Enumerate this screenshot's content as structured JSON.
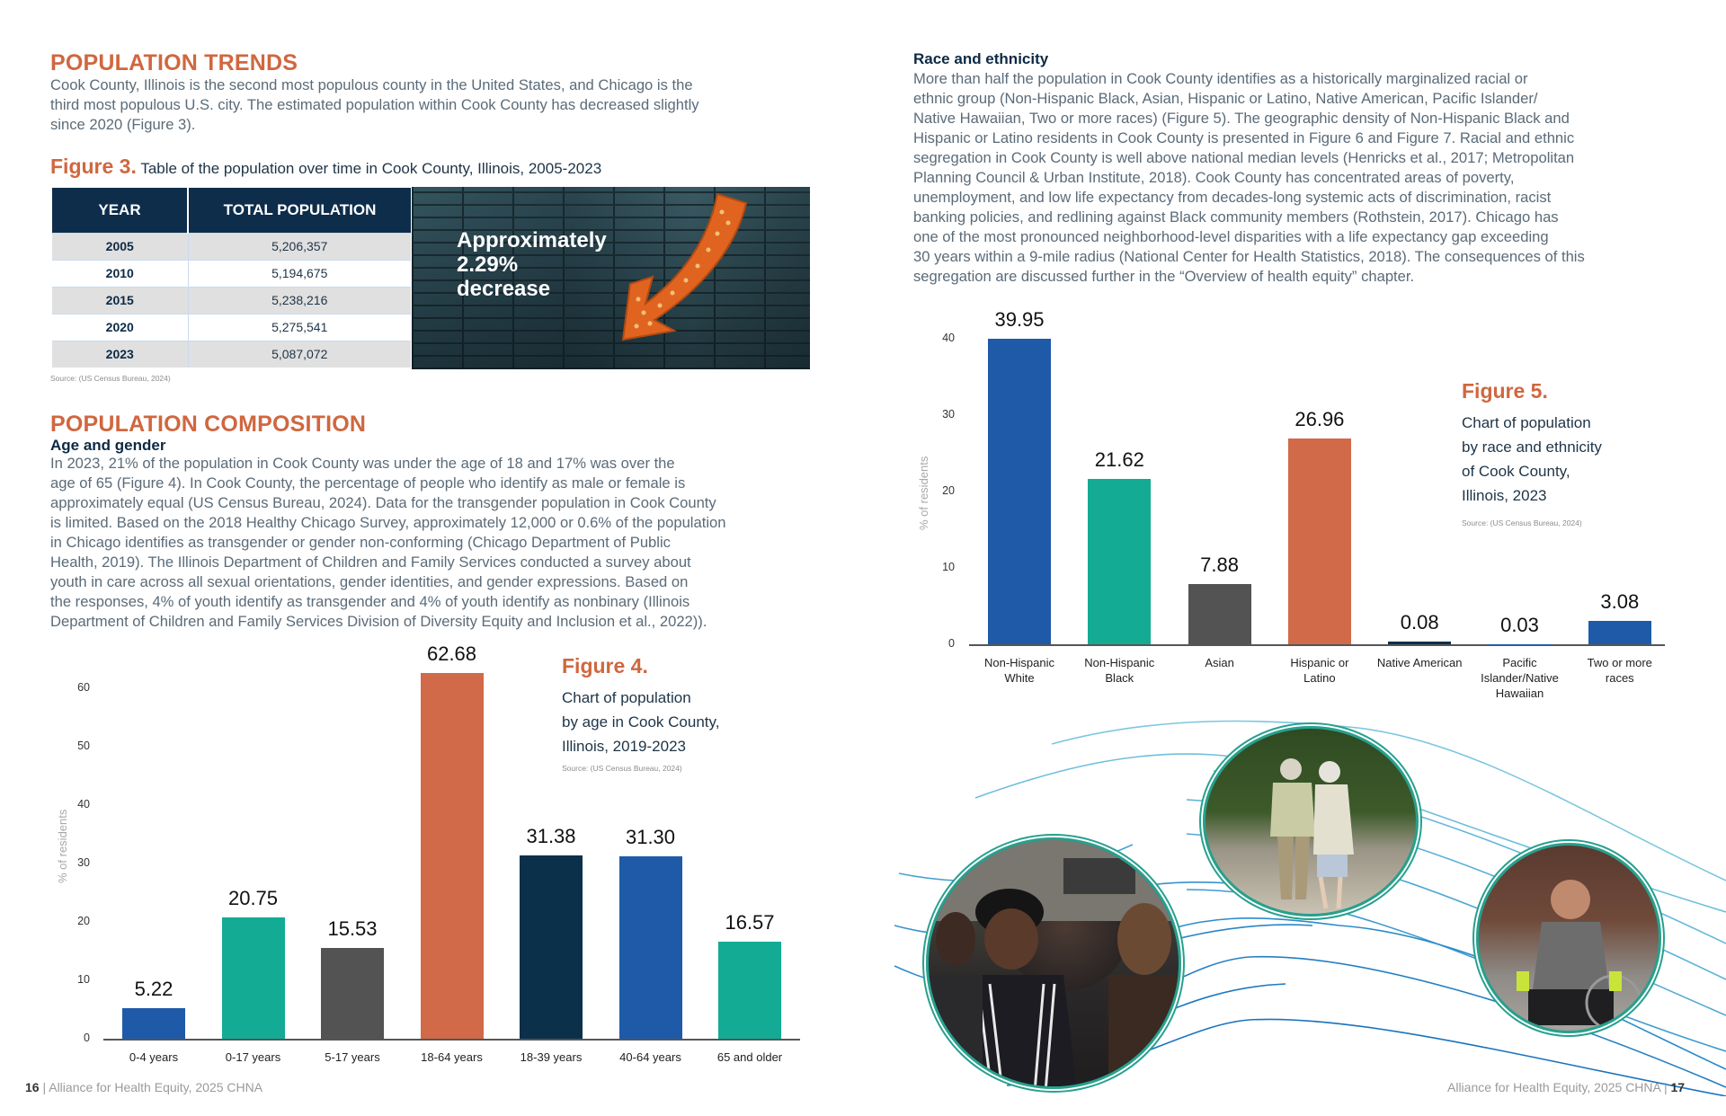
{
  "left_page": {
    "section_title": "POPULATION TRENDS",
    "intro_lines": [
      "Cook County, Illinois is the second most populous county in the United States, and Chicago is the",
      "third most populous U.S. city. The estimated population within Cook County has decreased slightly",
      "since 2020 (Figure 3)."
    ],
    "figure3": {
      "label": "Figure 3.",
      "caption": "Table of the population over time in Cook County, Illinois, 2005-2023",
      "columns": [
        "YEAR",
        "TOTAL POPULATION"
      ],
      "rows": [
        {
          "year": "2005",
          "population": "5,206,357"
        },
        {
          "year": "2010",
          "population": "5,194,675"
        },
        {
          "year": "2015",
          "population": "5,238,216"
        },
        {
          "year": "2020",
          "population": "5,275,541"
        },
        {
          "year": "2023",
          "population": "5,087,072"
        }
      ],
      "callout_lines": [
        "Approximately",
        "2.29%",
        "decrease"
      ],
      "source": "Source: (US Census Bureau, 2024)"
    },
    "composition_title": "POPULATION COMPOSITION",
    "age_gender_title": "Age and gender",
    "age_gender_lines": [
      "In 2023, 21% of the population in Cook County was under the age of 18 and 17% was over the",
      "age of 65 (Figure 4). In Cook County, the percentage of people who identify as male or female is",
      "approximately equal (US Census Bureau, 2024). Data for the transgender population in Cook County",
      "is limited. Based on the 2018 Healthy Chicago Survey, approximately 12,000 or 0.6% of the population",
      "in Chicago identifies as transgender or gender non-conforming (Chicago Department of Public",
      "Health, 2019). The Illinois Department of Children and Family Services conducted a survey about",
      "youth in care across all sexual orientations, gender identities, and gender expressions. Based on",
      "the responses, 4% of youth identify as transgender and 4% of youth identify as nonbinary (Illinois",
      "Department of Children and Family Services Division of Diversity Equity and Inclusion et al., 2022))."
    ],
    "figure4": {
      "label": "Figure 4.",
      "caption_lines": [
        "Chart of population",
        "by age in Cook County,",
        "Illinois, 2019-2023"
      ],
      "source": "Source: (US Census Bureau, 2024)"
    },
    "footer": {
      "page": "16",
      "sep": " | ",
      "text": "Alliance for Health Equity, 2025 CHNA"
    }
  },
  "right_page": {
    "race_title": "Race and ethnicity",
    "race_lines": [
      "More than half the population in Cook County identifies as a historically marginalized racial or",
      "ethnic group (Non-Hispanic Black, Asian, Hispanic or Latino, Native American, Pacific Islander/",
      "Native Hawaiian, Two or more races) (Figure 5). The geographic density of Non-Hispanic Black and",
      "Hispanic or Latino residents in Cook County is presented in Figure 6 and Figure 7. Racial and ethnic",
      "segregation in Cook County is well above national median levels (Henricks et al., 2017; Metropolitan",
      "Planning Council & Urban Institute, 2018). Cook County has concentrated areas of poverty,",
      "unemployment, and low life expectancy from decades-long systemic acts of discrimination, racist",
      "banking policies, and redlining against Black community members (Rothstein, 2017). Chicago has",
      "one of the most pronounced neighborhood-level disparities with a life expectancy gap exceeding",
      "30 years within a 9-mile radius (National Center for Health Statistics, 2018). The consequences of this",
      "segregation are discussed further in the “Overview of health equity” chapter."
    ],
    "figure5": {
      "label": "Figure 5.",
      "caption_lines": [
        "Chart of population",
        "by race and ethnicity",
        "of Cook County,",
        "Illinois, 2023"
      ],
      "source": "Source: (US Census Bureau, 2024)"
    },
    "photos": [
      "young-men-laughing-photo",
      "elderly-couple-walking-photo",
      "man-in-wheelchair-photo"
    ],
    "footer": {
      "text": "Alliance for Health Equity, 2025 CHNA",
      "sep": " | ",
      "page": "17"
    }
  },
  "colors": {
    "accent_orange": "#d0673f",
    "navy": "#0d2d4a",
    "blue": "#1f5aa8",
    "teal": "#13ab94",
    "gray": "#535353",
    "dark_navy": "#0b304a",
    "frame_teal": "#27a08d"
  },
  "chart_data": [
    {
      "type": "bar",
      "title": "Figure 4. Chart of population by age in Cook County, Illinois, 2019-2023",
      "xlabel": "",
      "ylabel": "% of residents",
      "ylim": [
        0,
        65
      ],
      "yticks": [
        0,
        10,
        20,
        30,
        40,
        50,
        60
      ],
      "grid": false,
      "categories": [
        "0-4 years",
        "0-17 years",
        "5-17 years",
        "18-64 years",
        "18-39 years",
        "40-64 years",
        "65 and older"
      ],
      "values": [
        5.22,
        20.75,
        15.53,
        62.68,
        31.38,
        31.3,
        16.57
      ],
      "labels": [
        "5.22",
        "20.75",
        "15.53",
        "62.68",
        "31.38",
        "31.30",
        "16.57"
      ],
      "bar_colors": [
        "#1f5aa8",
        "#13ab94",
        "#535353",
        "#d06a48",
        "#0b304a",
        "#1f5aa8",
        "#13ab94"
      ],
      "source": "Source: (US Census Bureau, 2024)"
    },
    {
      "type": "bar",
      "title": "Figure 5. Chart of population by race and ethnicity of Cook County, Illinois, 2023",
      "xlabel": "",
      "ylabel": "% of residents",
      "ylim": [
        0,
        42
      ],
      "yticks": [
        0,
        10,
        20,
        30,
        40
      ],
      "grid": false,
      "categories": [
        "Non-Hispanic White",
        "Non-Hispanic Black",
        "Asian",
        "Hispanic or Latino",
        "Native American",
        "Pacific Islander/Native Hawaiian",
        "Two or more races"
      ],
      "category_lines": [
        [
          "Non-Hispanic",
          "White"
        ],
        [
          "Non-Hispanic",
          "Black"
        ],
        [
          "Asian"
        ],
        [
          "Hispanic or",
          "Latino"
        ],
        [
          "Native American"
        ],
        [
          "Pacific",
          "Islander/Native",
          "Hawaiian"
        ],
        [
          "Two or more",
          "races"
        ]
      ],
      "values": [
        39.95,
        21.62,
        7.88,
        26.96,
        0.08,
        0.03,
        3.08
      ],
      "labels": [
        "39.95",
        "21.62",
        "7.88",
        "26.96",
        "0.08",
        "0.03",
        "3.08"
      ],
      "bar_colors": [
        "#1f5aa8",
        "#13ab94",
        "#535353",
        "#d06a48",
        "#0b304a",
        "#1f5aa8",
        "#1f5aa8"
      ],
      "source": "Source: (US Census Bureau, 2024)"
    }
  ]
}
